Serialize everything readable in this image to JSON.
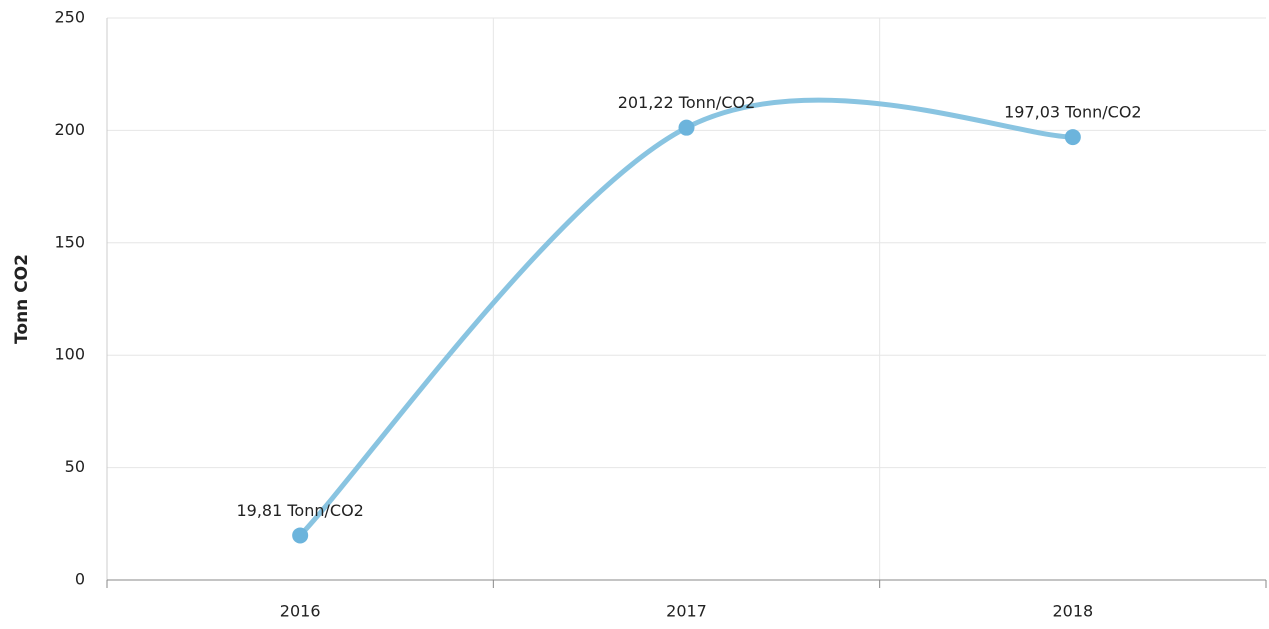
{
  "chart_data": {
    "type": "line",
    "y_label": "Tonn CO2",
    "categories": [
      "2016",
      "2017",
      "2018"
    ],
    "series": [
      {
        "name": "Tonn/CO2",
        "color": "#89c4e1",
        "marker_color": "#6cb4dc",
        "values": [
          19.81,
          201.22,
          197.03
        ],
        "value_labels": [
          "19,81 Tonn/CO2",
          "201,22 Tonn/CO2",
          "197,03 Tonn/CO2"
        ]
      }
    ],
    "ylim": [
      0,
      250
    ],
    "yticks": [
      0,
      50,
      100,
      150,
      200,
      250
    ],
    "grid": true,
    "smooth": true
  }
}
